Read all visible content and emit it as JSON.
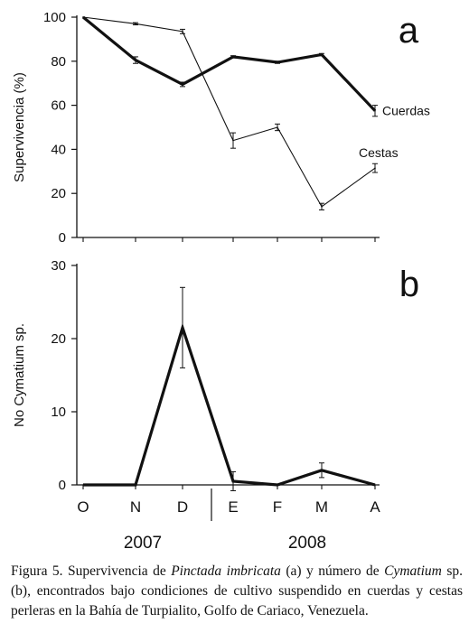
{
  "chart_data": [
    {
      "type": "line",
      "panel_label": "a",
      "ylabel": "Supervivencia (%)",
      "ylim": [
        0,
        100
      ],
      "yticks": [
        0,
        20,
        40,
        60,
        80,
        100
      ],
      "categories": [
        "O",
        "N",
        "D",
        "E",
        "F",
        "M",
        "A"
      ],
      "series": [
        {
          "name": "Cuerdas",
          "style": "thick",
          "values": [
            100,
            80.5,
            69.5,
            82,
            79.5,
            83,
            57.5
          ],
          "errors": [
            0,
            1.5,
            1,
            0.5,
            0.5,
            0.5,
            2.5
          ]
        },
        {
          "name": "Cestas",
          "style": "thin",
          "values": [
            100,
            97,
            93.5,
            44,
            50,
            14,
            31.5
          ],
          "errors": [
            0,
            0.5,
            1,
            3.5,
            1.5,
            1.5,
            2
          ]
        }
      ]
    },
    {
      "type": "line",
      "panel_label": "b",
      "ylabel": "No Cymatium sp.",
      "ylim": [
        0,
        30
      ],
      "yticks": [
        0,
        10,
        20,
        30
      ],
      "categories": [
        "O",
        "N",
        "D",
        "E",
        "F",
        "M",
        "A"
      ],
      "year_labels": [
        "2007",
        "2008"
      ],
      "series": [
        {
          "name": "",
          "style": "thick",
          "values": [
            0,
            0,
            21.5,
            0.5,
            0,
            2,
            0
          ],
          "errors": [
            0,
            0,
            5.5,
            1.3,
            0,
            1,
            0
          ]
        }
      ]
    }
  ],
  "caption": {
    "part1": "Figura 5. Supervivencia de ",
    "species1": "Pinctada imbricata",
    "part2": " (a) y número de ",
    "species2": "Cymatium",
    "part3": " sp. (b), encontrados bajo condiciones de cultivo suspendido en cuerdas y cestas perleras en la Bahía de Turpialito, Golfo de Cariaco, Venezuela."
  }
}
